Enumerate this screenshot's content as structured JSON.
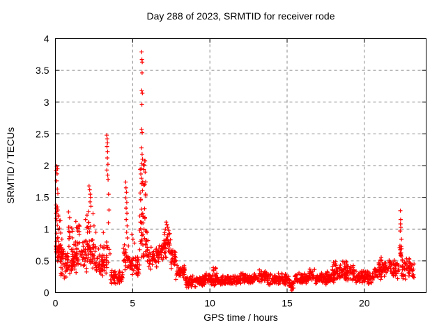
{
  "chart_data": {
    "type": "scatter",
    "title": "Day 288 of 2023, SRMTID for receiver rode",
    "xlabel": "GPS time / hours",
    "ylabel": "SRMTID / TECUs",
    "xlim": [
      0,
      24
    ],
    "ylim": [
      0,
      4
    ],
    "xticks": [
      0,
      5,
      10,
      15,
      20
    ],
    "xtick_labels": [
      "0",
      "5",
      "10",
      "15",
      "20"
    ],
    "yticks": [
      0,
      0.5,
      1,
      1.5,
      2,
      2.5,
      3,
      3.5,
      4
    ],
    "ytick_labels": [
      "0",
      "0.5",
      "1",
      "1.5",
      "2",
      "2.5",
      "3",
      "3.5",
      "4"
    ],
    "grid": true,
    "grid_color": "#8a8a8a",
    "legend": "none",
    "marker": "plus",
    "marker_color": "#ff0000",
    "background": "#ffffff",
    "seed": 2023288,
    "points_explicit": [
      [
        0.05,
        1.92
      ],
      [
        0.09,
        1.99
      ],
      [
        0.11,
        1.87
      ],
      [
        0.13,
        1.95
      ],
      [
        0.08,
        1.76
      ],
      [
        0.12,
        1.63
      ],
      [
        0.16,
        1.56
      ],
      [
        0.04,
        1.38
      ],
      [
        0.07,
        1.33
      ],
      [
        0.1,
        1.28
      ],
      [
        0.13,
        1.35
      ],
      [
        0.05,
        1.25
      ],
      [
        0.15,
        1.3
      ],
      [
        0.18,
        1.22
      ],
      [
        0.85,
        1.27
      ],
      [
        0.92,
        1.18
      ],
      [
        1.32,
        1.12
      ],
      [
        1.55,
        1.05
      ],
      [
        1.95,
        1.15
      ],
      [
        2.05,
        1.22
      ],
      [
        2.5,
        1.05
      ],
      [
        2.62,
        0.95
      ],
      [
        2.18,
        1.68
      ],
      [
        2.22,
        1.62
      ],
      [
        2.25,
        1.55
      ],
      [
        2.28,
        1.5
      ],
      [
        2.24,
        1.43
      ],
      [
        2.3,
        1.36
      ],
      [
        3.32,
        2.48
      ],
      [
        3.35,
        2.42
      ],
      [
        3.37,
        2.36
      ],
      [
        3.34,
        2.3
      ],
      [
        3.38,
        2.22
      ],
      [
        3.36,
        2.12
      ],
      [
        3.4,
        2.02
      ],
      [
        3.33,
        1.93
      ],
      [
        3.39,
        1.85
      ],
      [
        3.41,
        1.78
      ],
      [
        3.44,
        1.55
      ],
      [
        3.47,
        1.3
      ],
      [
        3.43,
        1.1
      ],
      [
        4.55,
        1.74
      ],
      [
        4.57,
        1.65
      ],
      [
        4.6,
        1.58
      ],
      [
        4.56,
        1.49
      ],
      [
        4.62,
        1.42
      ],
      [
        4.58,
        1.33
      ],
      [
        4.63,
        1.25
      ],
      [
        4.59,
        1.15
      ],
      [
        4.64,
        1.05
      ],
      [
        4.61,
        0.95
      ],
      [
        4.66,
        0.86
      ],
      [
        4.95,
        0.92
      ],
      [
        5.02,
        0.84
      ],
      [
        5.1,
        0.78
      ],
      [
        5.58,
        3.79
      ],
      [
        5.6,
        3.67
      ],
      [
        5.62,
        3.63
      ],
      [
        5.61,
        3.46
      ],
      [
        5.59,
        3.18
      ],
      [
        5.63,
        3.14
      ],
      [
        5.6,
        2.96
      ],
      [
        5.58,
        2.57
      ],
      [
        5.62,
        2.52
      ],
      [
        5.57,
        2.28
      ],
      [
        5.61,
        2.18
      ],
      [
        5.59,
        2.03
      ],
      [
        5.64,
        2.1
      ],
      [
        5.56,
        1.95
      ],
      [
        7.12,
        1.0
      ],
      [
        7.17,
        1.11
      ],
      [
        7.22,
        1.07
      ],
      [
        7.27,
        1.03
      ],
      [
        7.32,
        0.98
      ],
      [
        15.25,
        0.1
      ],
      [
        15.28,
        0.08
      ],
      [
        15.3,
        0.03
      ],
      [
        15.32,
        0.05
      ],
      [
        15.34,
        0.07
      ],
      [
        15.36,
        0.12
      ],
      [
        22.32,
        0.97
      ],
      [
        22.33,
        1.29
      ],
      [
        22.34,
        1.08
      ],
      [
        22.35,
        1.15
      ],
      [
        22.36,
        1.03
      ],
      [
        23.05,
        0.42
      ],
      [
        23.12,
        0.35
      ],
      [
        23.18,
        0.28
      ],
      [
        23.22,
        0.45
      ]
    ],
    "cluster_segments": [
      {
        "x0": 0.02,
        "x1": 0.5,
        "n": 45,
        "ylo": 0.45,
        "yhi": 0.85,
        "d": "c"
      },
      {
        "x0": 0.02,
        "x1": 0.35,
        "n": 12,
        "ylo": 0.85,
        "yhi": 1.2,
        "d": "u"
      },
      {
        "x0": 0.3,
        "x1": 1.1,
        "n": 55,
        "ylo": 0.22,
        "yhi": 0.75,
        "d": "c"
      },
      {
        "x0": 0.8,
        "x1": 1.2,
        "n": 10,
        "ylo": 0.75,
        "yhi": 1.1,
        "d": "u"
      },
      {
        "x0": 1.1,
        "x1": 1.8,
        "n": 55,
        "ylo": 0.3,
        "yhi": 0.85,
        "d": "c"
      },
      {
        "x0": 1.3,
        "x1": 1.6,
        "n": 8,
        "ylo": 0.85,
        "yhi": 1.1,
        "d": "u"
      },
      {
        "x0": 1.8,
        "x1": 2.6,
        "n": 60,
        "ylo": 0.3,
        "yhi": 0.9,
        "d": "c"
      },
      {
        "x0": 1.9,
        "x1": 2.5,
        "n": 10,
        "ylo": 0.9,
        "yhi": 1.3,
        "d": "u"
      },
      {
        "x0": 2.6,
        "x1": 3.3,
        "n": 45,
        "ylo": 0.2,
        "yhi": 0.65,
        "d": "c"
      },
      {
        "x0": 2.7,
        "x1": 3.2,
        "n": 6,
        "ylo": 0.65,
        "yhi": 1.0,
        "d": "u"
      },
      {
        "x0": 3.3,
        "x1": 3.55,
        "n": 12,
        "ylo": 0.35,
        "yhi": 0.9,
        "d": "u"
      },
      {
        "x0": 3.55,
        "x1": 4.35,
        "n": 55,
        "ylo": 0.12,
        "yhi": 0.38,
        "d": "c"
      },
      {
        "x0": 4.4,
        "x1": 4.75,
        "n": 25,
        "ylo": 0.3,
        "yhi": 0.8,
        "d": "c"
      },
      {
        "x0": 4.75,
        "x1": 5.45,
        "n": 45,
        "ylo": 0.25,
        "yhi": 0.6,
        "d": "c"
      },
      {
        "x0": 5.45,
        "x1": 5.85,
        "n": 35,
        "ylo": 1.0,
        "yhi": 2.1,
        "d": "u"
      },
      {
        "x0": 5.45,
        "x1": 6.0,
        "n": 30,
        "ylo": 0.55,
        "yhi": 1.0,
        "d": "u"
      },
      {
        "x0": 5.95,
        "x1": 6.65,
        "n": 45,
        "ylo": 0.3,
        "yhi": 0.75,
        "d": "c"
      },
      {
        "x0": 6.65,
        "x1": 6.95,
        "n": 25,
        "ylo": 0.4,
        "yhi": 0.85,
        "d": "c"
      },
      {
        "x0": 6.95,
        "x1": 7.45,
        "n": 45,
        "ylo": 0.5,
        "yhi": 1.05,
        "d": "c"
      },
      {
        "x0": 7.45,
        "x1": 7.8,
        "n": 30,
        "ylo": 0.35,
        "yhi": 0.7,
        "d": "c"
      },
      {
        "x0": 7.8,
        "x1": 8.4,
        "n": 40,
        "ylo": 0.18,
        "yhi": 0.45,
        "d": "c"
      },
      {
        "x0": 8.4,
        "x1": 9.6,
        "n": 90,
        "ylo": 0.08,
        "yhi": 0.28,
        "d": "c"
      },
      {
        "x0": 9.6,
        "x1": 10.6,
        "n": 80,
        "ylo": 0.1,
        "yhi": 0.32,
        "d": "c"
      },
      {
        "x0": 10.2,
        "x1": 10.45,
        "n": 6,
        "ylo": 0.3,
        "yhi": 0.4,
        "d": "u"
      },
      {
        "x0": 10.6,
        "x1": 12.0,
        "n": 110,
        "ylo": 0.1,
        "yhi": 0.28,
        "d": "c"
      },
      {
        "x0": 12.0,
        "x1": 13.2,
        "n": 90,
        "ylo": 0.12,
        "yhi": 0.32,
        "d": "c"
      },
      {
        "x0": 13.2,
        "x1": 13.7,
        "n": 35,
        "ylo": 0.15,
        "yhi": 0.4,
        "d": "c"
      },
      {
        "x0": 13.7,
        "x1": 15.1,
        "n": 100,
        "ylo": 0.1,
        "yhi": 0.32,
        "d": "c"
      },
      {
        "x0": 15.1,
        "x1": 15.5,
        "n": 20,
        "ylo": 0.05,
        "yhi": 0.25,
        "d": "c"
      },
      {
        "x0": 15.5,
        "x1": 16.4,
        "n": 65,
        "ylo": 0.12,
        "yhi": 0.32,
        "d": "c"
      },
      {
        "x0": 16.4,
        "x1": 16.8,
        "n": 25,
        "ylo": 0.15,
        "yhi": 0.42,
        "d": "c"
      },
      {
        "x0": 16.8,
        "x1": 17.9,
        "n": 80,
        "ylo": 0.12,
        "yhi": 0.34,
        "d": "c"
      },
      {
        "x0": 17.9,
        "x1": 19.3,
        "n": 100,
        "ylo": 0.15,
        "yhi": 0.45,
        "d": "c"
      },
      {
        "x0": 18.0,
        "x1": 18.3,
        "n": 6,
        "ylo": 0.42,
        "yhi": 0.5,
        "d": "u"
      },
      {
        "x0": 18.6,
        "x1": 19.0,
        "n": 6,
        "ylo": 0.42,
        "yhi": 0.5,
        "d": "u"
      },
      {
        "x0": 19.3,
        "x1": 20.6,
        "n": 90,
        "ylo": 0.13,
        "yhi": 0.35,
        "d": "c"
      },
      {
        "x0": 20.6,
        "x1": 21.3,
        "n": 50,
        "ylo": 0.18,
        "yhi": 0.5,
        "d": "c"
      },
      {
        "x0": 20.9,
        "x1": 21.2,
        "n": 6,
        "ylo": 0.45,
        "yhi": 0.56,
        "d": "u"
      },
      {
        "x0": 21.3,
        "x1": 22.25,
        "n": 60,
        "ylo": 0.2,
        "yhi": 0.55,
        "d": "c"
      },
      {
        "x0": 22.28,
        "x1": 22.42,
        "n": 12,
        "ylo": 0.55,
        "yhi": 0.95,
        "d": "u"
      },
      {
        "x0": 22.4,
        "x1": 23.0,
        "n": 45,
        "ylo": 0.2,
        "yhi": 0.55,
        "d": "c"
      },
      {
        "x0": 23.0,
        "x1": 23.25,
        "n": 10,
        "ylo": 0.2,
        "yhi": 0.45,
        "d": "u"
      }
    ]
  }
}
